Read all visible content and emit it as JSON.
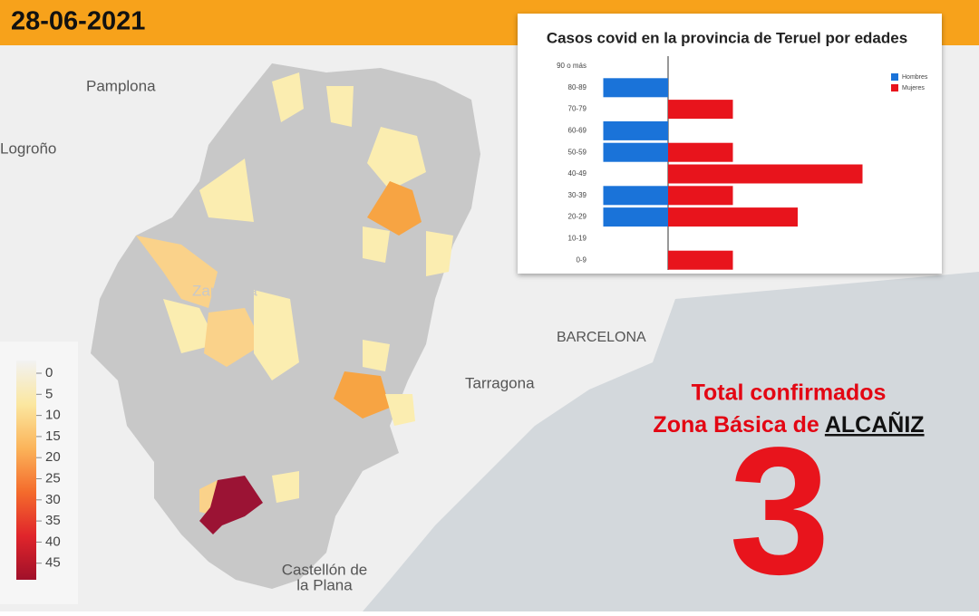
{
  "date": "28-06-2021",
  "map_labels": {
    "pamplona": "Pamplona",
    "logrono": "Logroño",
    "zaragoza": "Zaragoza",
    "barcelona": "BARCELONA",
    "tarragona": "Tarragona",
    "castellon": [
      "Castellón de",
      "la Plana"
    ]
  },
  "color_scale": {
    "ticks": [
      0,
      5,
      10,
      15,
      20,
      25,
      30,
      35,
      40,
      45
    ]
  },
  "total": {
    "line1": "Total confirmados",
    "line2": "Zona Básica de",
    "zone": "ALCAÑIZ",
    "value": 3
  },
  "chart_data": {
    "type": "bar",
    "orientation": "pyramid",
    "title": "Casos covid en la provincia de Teruel por edades",
    "categories": [
      "90 o más",
      "80-89",
      "70-79",
      "60-69",
      "50-59",
      "40-49",
      "30-39",
      "20-29",
      "10-19",
      "0-9"
    ],
    "series": [
      {
        "name": "Hombres",
        "color": "#1a73d9",
        "side": "left",
        "values": [
          0,
          1,
          0,
          1,
          1,
          0,
          1,
          1,
          0,
          0
        ]
      },
      {
        "name": "Mujeres",
        "color": "#e8141c",
        "side": "right",
        "values": [
          0,
          0,
          1,
          0,
          1,
          3,
          1,
          2,
          0,
          1
        ]
      }
    ]
  }
}
